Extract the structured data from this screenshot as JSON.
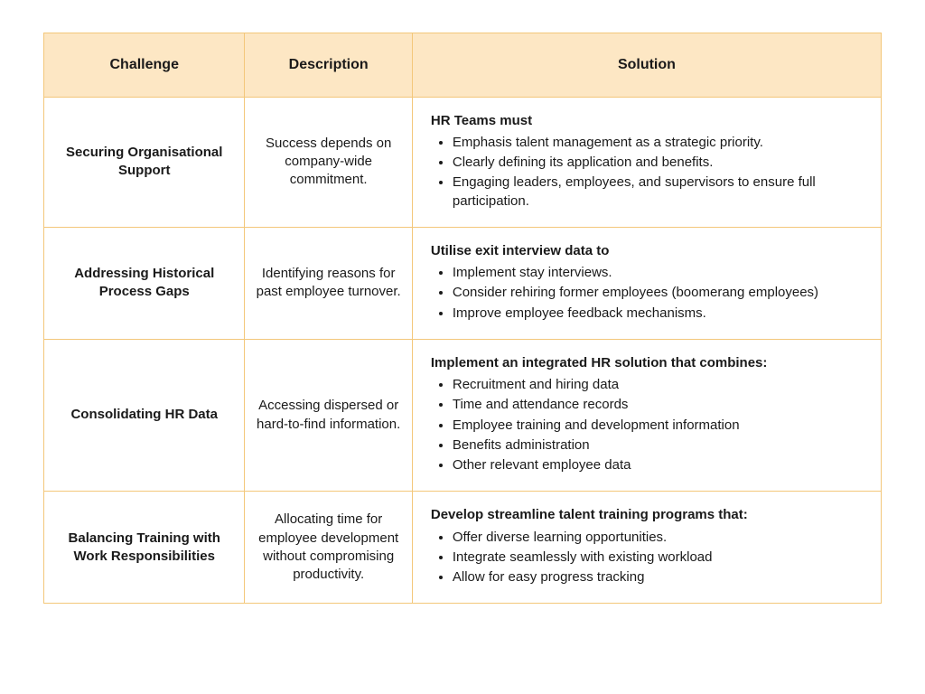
{
  "table": {
    "border_color": "#f3c77a",
    "header_bg": "#fde7c4",
    "body_bg": "#ffffff",
    "text_color": "#1a1a1a",
    "header_fontsize_pt": 12,
    "body_fontsize_pt": 11,
    "columns": [
      {
        "key": "challenge",
        "label": "Challenge",
        "width_pct": 24,
        "align": "center"
      },
      {
        "key": "description",
        "label": "Description",
        "width_pct": 20,
        "align": "center"
      },
      {
        "key": "solution",
        "label": "Solution",
        "width_pct": 56,
        "align": "left"
      }
    ],
    "rows": [
      {
        "challenge": "Securing Organisational Support",
        "description": "Success depends on company-wide commitment.",
        "solution_lead": "HR Teams must",
        "solution_items": [
          "Emphasis talent management as a strategic priority.",
          "Clearly defining its application and benefits.",
          "Engaging leaders, employees, and supervisors to ensure full participation."
        ]
      },
      {
        "challenge": "Addressing Historical Process Gaps",
        "description": "Identifying reasons for past employee turnover.",
        "solution_lead": "Utilise exit interview data to",
        "solution_items": [
          "Implement stay interviews.",
          "Consider rehiring former employees (boomerang employees)",
          "Improve employee feedback mechanisms."
        ]
      },
      {
        "challenge": "Consolidating HR Data",
        "description": "Accessing dispersed or hard-to-find information.",
        "solution_lead": "Implement an integrated HR solution that combines:",
        "solution_items": [
          "Recruitment and hiring data",
          "Time and attendance records",
          "Employee training and development information",
          "Benefits administration",
          "Other relevant employee data"
        ]
      },
      {
        "challenge": "Balancing Training with Work Responsibilities",
        "description": "Allocating time for employee development without compromising productivity.",
        "solution_lead": "Develop streamline talent training programs that:",
        "solution_items": [
          "Offer diverse learning opportunities.",
          "Integrate seamlessly with existing workload",
          "Allow for easy progress tracking"
        ]
      }
    ]
  }
}
